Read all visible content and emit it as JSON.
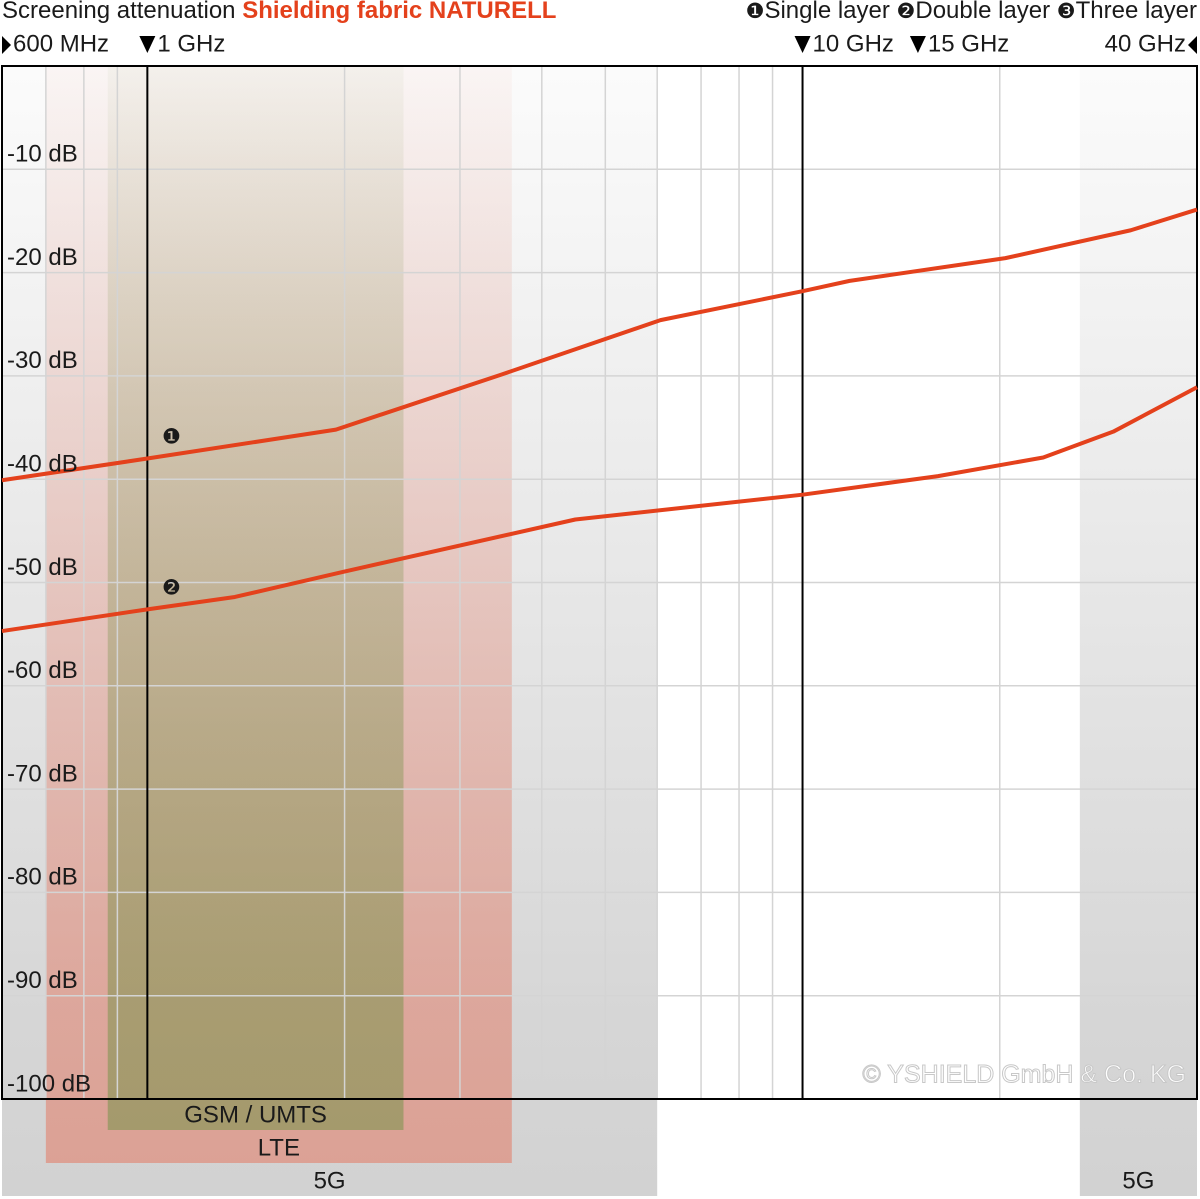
{
  "chart_data": {
    "type": "line",
    "title": "Screening attenuation",
    "product": "Shielding fabric NATURELL",
    "copyright": "© YSHIELD GmbH & Co. KG",
    "log_x": true,
    "grid": true,
    "xlim": [
      0.6,
      40
    ],
    "xticks": [
      {
        "value": 0.6,
        "label": "600 MHz"
      },
      {
        "value": 1,
        "label": "1 GHz"
      },
      {
        "value": 10,
        "label": "10 GHz"
      },
      {
        "value": 15,
        "label": "15 GHz"
      },
      {
        "value": 40,
        "label": "40 GHz"
      }
    ],
    "xgrid": [
      0.7,
      0.8,
      0.9,
      2,
      3,
      4,
      5,
      6,
      7,
      8,
      9,
      20
    ],
    "reference_lines": [
      1,
      10
    ],
    "ylim": [
      -100,
      0
    ],
    "yticks": [
      {
        "value": -100,
        "label": "-100 dB"
      },
      {
        "value": -90,
        "label": "-90 dB"
      },
      {
        "value": -80,
        "label": "-80 dB"
      },
      {
        "value": -70,
        "label": "-70 dB"
      },
      {
        "value": -60,
        "label": "-60 dB"
      },
      {
        "value": -50,
        "label": "-50 dB"
      },
      {
        "value": -40,
        "label": "-40 dB"
      },
      {
        "value": -30,
        "label": "-30 dB"
      },
      {
        "value": -20,
        "label": "-20 dB"
      },
      {
        "value": -10,
        "label": "-10 dB"
      }
    ],
    "bands": [
      {
        "name": "GSM / UMTS",
        "color": "#7f9450",
        "ranges": [
          [
            0.87,
            2.46
          ]
        ]
      },
      {
        "name": "LTE",
        "color": "#e2806c",
        "ranges": [
          [
            0.7,
            3.6
          ]
        ]
      },
      {
        "name": "5G",
        "color": "#b4b4b4",
        "ranges": [
          [
            0.6,
            6
          ],
          [
            26.5,
            40
          ]
        ]
      }
    ],
    "series": [
      {
        "name": "Single layer",
        "marker": "❶",
        "color": "#e4411c",
        "x": [
          0.6,
          1,
          1.94,
          3.46,
          6.07,
          10,
          11.8,
          20.4,
          31.7,
          40
        ],
        "values": [
          -40.1,
          -38.0,
          -35.2,
          -29.9,
          -24.6,
          -21.8,
          -20.8,
          -18.6,
          -15.9,
          -13.9
        ]
      },
      {
        "name": "Double layer",
        "marker": "❷",
        "color": "#e4411c",
        "x": [
          0.6,
          1,
          1.36,
          1.98,
          4.5,
          10,
          16.1,
          23.3,
          29.8,
          40
        ],
        "values": [
          -54.7,
          -52.6,
          -51.4,
          -49.0,
          -43.9,
          -41.5,
          -39.7,
          -37.9,
          -35.4,
          -31.1
        ]
      },
      {
        "name": "Three layer",
        "marker": "❸",
        "color": "#e4411c",
        "x": [],
        "values": []
      }
    ]
  }
}
